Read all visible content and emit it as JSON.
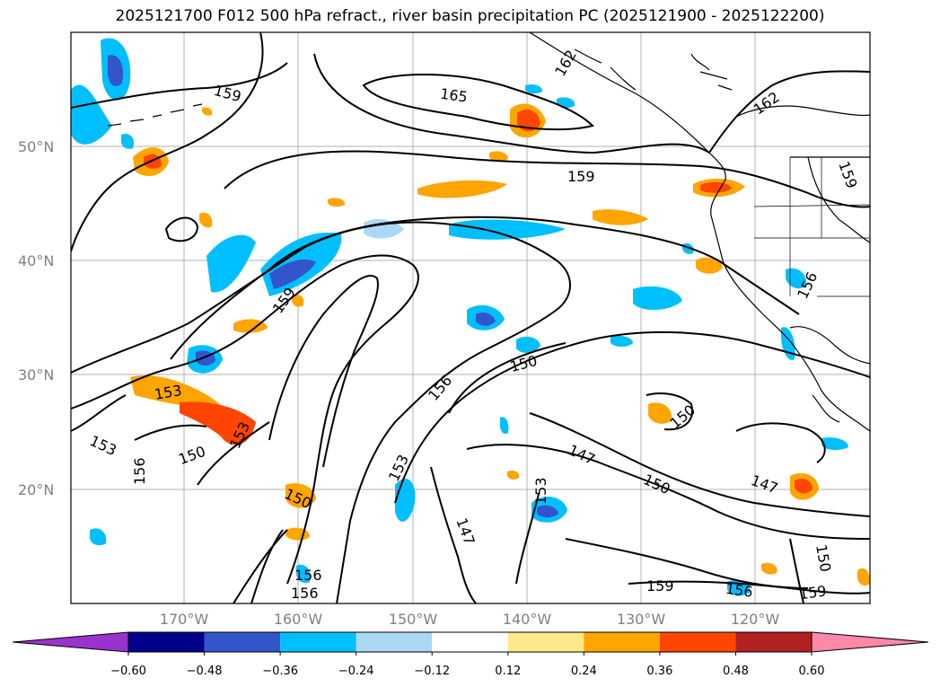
{
  "title": "2025121700 F012 500 hPa refract., river basin precipitation PC (2025121900 - 2025122200)",
  "lat_labels": [
    "50°N",
    "40°N",
    "30°N",
    "20°N"
  ],
  "lon_labels": [
    "170°W",
    "160°W",
    "150°W",
    "140°W",
    "130°W",
    "120°W"
  ],
  "contour_labels": [
    {
      "text": "159"
    },
    {
      "text": "165"
    },
    {
      "text": "162"
    },
    {
      "text": "162"
    },
    {
      "text": "159"
    },
    {
      "text": "159"
    },
    {
      "text": "159"
    },
    {
      "text": "156"
    },
    {
      "text": "153"
    },
    {
      "text": "156"
    },
    {
      "text": "150"
    },
    {
      "text": "150"
    },
    {
      "text": "153"
    },
    {
      "text": "153"
    },
    {
      "text": "156"
    },
    {
      "text": "150"
    },
    {
      "text": "153"
    },
    {
      "text": "147"
    },
    {
      "text": "153"
    },
    {
      "text": "147"
    },
    {
      "text": "150"
    },
    {
      "text": "147"
    },
    {
      "text": "150"
    },
    {
      "text": "156"
    },
    {
      "text": "156"
    },
    {
      "text": "159"
    },
    {
      "text": "156"
    },
    {
      "text": "159"
    },
    {
      "text": "150"
    }
  ],
  "colorbar": {
    "ticks": [
      "−0.60",
      "−0.48",
      "−0.36",
      "−0.24",
      "−0.12",
      "0.12",
      "0.24",
      "0.36",
      "0.48",
      "0.60"
    ],
    "colors": [
      "#9933cc",
      "#00008b",
      "#3355cc",
      "#00bfff",
      "#add8f5",
      "#ffffff",
      "#ffe88a",
      "#ffa500",
      "#ff4500",
      "#b22222",
      "#ff88aa"
    ]
  }
}
